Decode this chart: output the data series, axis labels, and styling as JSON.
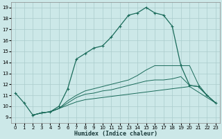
{
  "background_color": "#cce8e8",
  "grid_color": "#aacccc",
  "line_color": "#1a6b5a",
  "xlim": [
    -0.5,
    23.5
  ],
  "ylim": [
    8.5,
    19.5
  ],
  "xticks": [
    0,
    1,
    2,
    3,
    4,
    5,
    6,
    7,
    8,
    9,
    10,
    11,
    12,
    13,
    14,
    15,
    16,
    17,
    18,
    19,
    20,
    21,
    22,
    23
  ],
  "yticks": [
    9,
    10,
    11,
    12,
    13,
    14,
    15,
    16,
    17,
    18,
    19
  ],
  "xlabel": "Humidex (Indice chaleur)",
  "curve1_x": [
    0,
    1,
    2,
    3,
    4,
    5,
    6,
    7,
    8,
    9,
    10,
    11,
    12,
    13,
    14,
    15,
    16,
    17,
    18,
    19,
    20,
    21,
    22,
    23
  ],
  "curve1_y": [
    11.2,
    10.3,
    9.2,
    9.4,
    9.5,
    10.0,
    11.6,
    14.3,
    14.8,
    15.3,
    15.5,
    16.3,
    17.3,
    18.3,
    18.5,
    19.0,
    18.5,
    18.3,
    17.3,
    13.7,
    11.9,
    11.8,
    11.0,
    10.3
  ],
  "curve2_x": [
    2,
    3,
    4,
    5,
    6,
    7,
    8,
    9,
    10,
    11,
    12,
    13,
    14,
    15,
    16,
    17,
    18,
    19,
    20,
    21,
    22,
    23
  ],
  "curve2_y": [
    9.2,
    9.4,
    9.5,
    9.8,
    10.1,
    10.4,
    10.6,
    10.7,
    10.8,
    10.9,
    11.0,
    11.1,
    11.2,
    11.3,
    11.4,
    11.5,
    11.6,
    11.7,
    11.8,
    11.3,
    10.8,
    10.3
  ],
  "curve3_x": [
    2,
    3,
    4,
    5,
    6,
    7,
    8,
    9,
    10,
    11,
    12,
    13,
    14,
    15,
    16,
    17,
    18,
    19,
    20,
    21,
    22,
    23
  ],
  "curve3_y": [
    9.2,
    9.4,
    9.5,
    9.8,
    10.3,
    10.8,
    11.1,
    11.2,
    11.4,
    11.5,
    11.7,
    11.9,
    12.1,
    12.3,
    12.4,
    12.4,
    12.5,
    12.7,
    11.9,
    11.8,
    11.0,
    10.3
  ],
  "curve4_x": [
    2,
    3,
    4,
    5,
    6,
    7,
    8,
    9,
    10,
    11,
    12,
    13,
    14,
    15,
    16,
    17,
    18,
    19,
    20,
    21,
    22,
    23
  ],
  "curve4_y": [
    9.2,
    9.4,
    9.5,
    9.8,
    10.5,
    11.0,
    11.4,
    11.6,
    11.8,
    12.0,
    12.2,
    12.4,
    12.8,
    13.3,
    13.7,
    13.7,
    13.7,
    13.7,
    13.7,
    12.0,
    11.0,
    10.3
  ]
}
